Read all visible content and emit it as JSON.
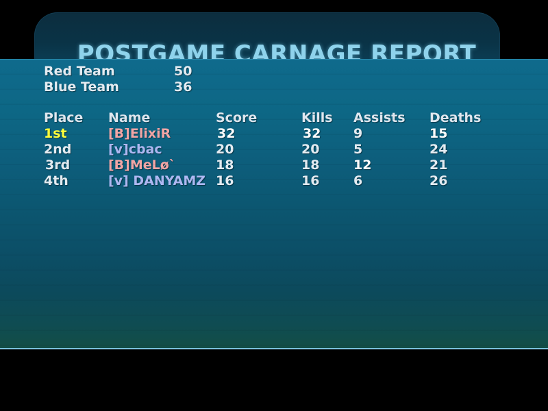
{
  "title": "POSTGAME CARNAGE REPORT",
  "teams": [
    {
      "name": "Red Team",
      "score": "50"
    },
    {
      "name": "Blue Team",
      "score": "36"
    }
  ],
  "columns": {
    "place": "Place",
    "name": "Name",
    "score": "Score",
    "kills": "Kills",
    "assists": "Assists",
    "deaths": "Deaths"
  },
  "players": [
    {
      "place": "1st",
      "name": "[B]ElixiR",
      "score": "32",
      "kills": "32",
      "assists": "9",
      "deaths": "15",
      "team": "red"
    },
    {
      "place": "2nd",
      "name": "[v]cbac",
      "score": "20",
      "kills": "20",
      "assists": "5",
      "deaths": "24",
      "team": "blue"
    },
    {
      "place": "3rd",
      "name": "[B]MeLø`",
      "score": "18",
      "kills": "18",
      "assists": "12",
      "deaths": "21",
      "team": "red"
    },
    {
      "place": "4th",
      "name": "[v] DANYAMZ",
      "score": "16",
      "kills": "16",
      "assists": "6",
      "deaths": "26",
      "team": "blue"
    }
  ],
  "colors": {
    "title": "#8fd3ec",
    "first_place": "#ffff3c",
    "red_team_name": "#f3a6a6",
    "blue_team_name": "#aeb8f2",
    "panel": "#0d6785"
  }
}
